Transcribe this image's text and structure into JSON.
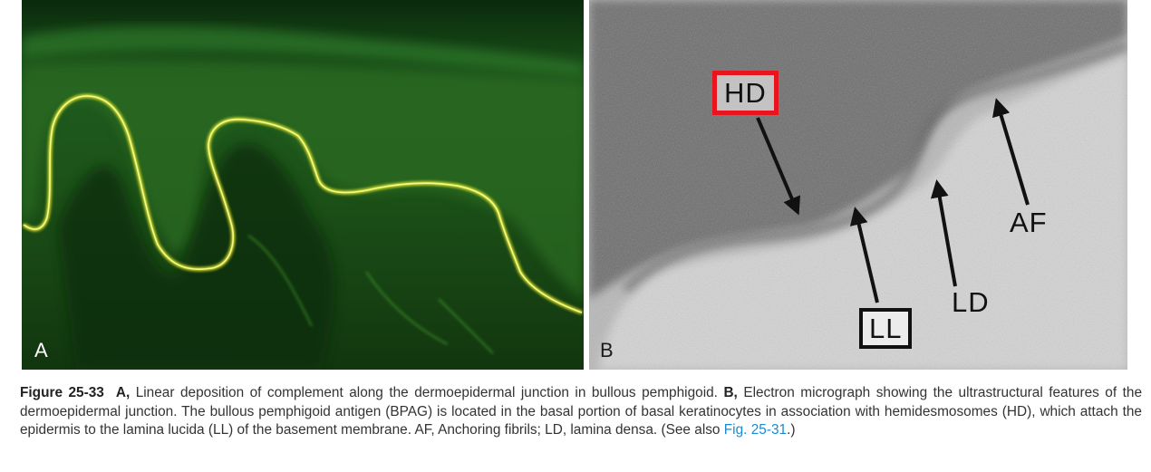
{
  "panel_a": {
    "label": "A"
  },
  "panel_b": {
    "label": "B",
    "labels": {
      "hd": "HD",
      "ll": "LL",
      "ld": "LD",
      "af": "AF"
    }
  },
  "caption": {
    "figure_number": "Figure 25-33",
    "a_label": "A,",
    "a_text": " Linear deposition of complement along the dermoepidermal junction in bullous pemphigoid. ",
    "b_label": "B,",
    "b_text": " Electron micrograph showing the ultrastructural features of the dermoepidermal junction. The bullous pemphigoid antigen (BPAG) is located in the basal portion of basal keratinocytes in association with hemidesmosomes (HD), which attach the epidermis to the lamina lucida (LL) of the basement membrane. AF, Anchoring fibrils; LD, lamina densa. (See also ",
    "link": "Fig. 25-31",
    "end": ".)"
  },
  "colors": {
    "highlight_box": "#e8141e",
    "link": "#1a8bd0",
    "fluorescence": "#e8f020"
  }
}
